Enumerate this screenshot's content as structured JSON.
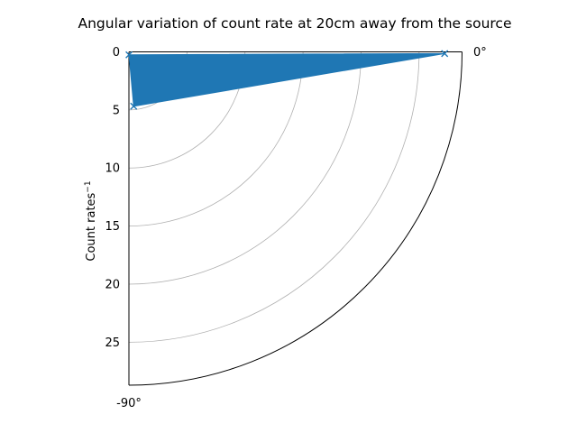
{
  "chart_data": {
    "type": "polar-area",
    "title": "Angular variation of count rate at 20cm away from the source",
    "rlabel": "Count rates",
    "rlabel_superscript": "−1",
    "theta_range_deg": [
      -90,
      0
    ],
    "theta_tick_labels": [
      "0°",
      "-90°"
    ],
    "r_range": [
      0,
      28.7
    ],
    "r_ticks": [
      0,
      5,
      10,
      15,
      20,
      25
    ],
    "grid": true,
    "series": [
      {
        "marker": "x",
        "color": "#1f77b4",
        "fill": true,
        "points": [
          {
            "theta_deg": -88.5,
            "r": 0.25
          },
          {
            "theta_deg": -85,
            "r": 4.7
          },
          {
            "theta_deg": -0.3,
            "r": 27.2
          }
        ]
      }
    ]
  }
}
